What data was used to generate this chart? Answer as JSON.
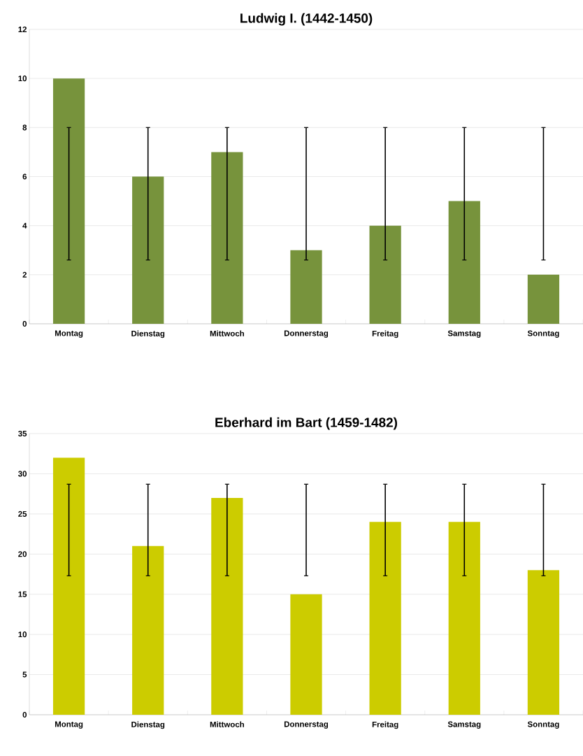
{
  "chart_data": [
    {
      "type": "bar",
      "title": "Ludwig I.  (1442-1450)",
      "categories": [
        "Montag",
        "Dienstag",
        "Mittwoch",
        "Donnerstag",
        "Freitag",
        "Samstag",
        "Sonntag"
      ],
      "values": [
        10,
        6,
        7,
        3,
        4,
        5,
        2
      ],
      "color": "#77933c",
      "errors": [
        [
          2.6,
          8
        ],
        [
          2.6,
          8
        ],
        [
          2.6,
          8
        ],
        [
          2.6,
          8
        ],
        [
          2.6,
          8
        ],
        [
          2.6,
          8
        ],
        [
          2.6,
          8
        ]
      ],
      "ylim": [
        0,
        12
      ],
      "yticks": [
        0,
        2,
        4,
        6,
        8,
        10,
        12
      ],
      "grid": "y"
    },
    {
      "type": "bar",
      "title": "Eberhard im Bart  (1459-1482)",
      "categories": [
        "Montag",
        "Dienstag",
        "Mittwoch",
        "Donnerstag",
        "Freitag",
        "Samstag",
        "Sonntag"
      ],
      "values": [
        32,
        21,
        27,
        15,
        24,
        24,
        18
      ],
      "color": "#cccc00",
      "errors": [
        [
          17.3,
          28.7
        ],
        [
          17.3,
          28.7
        ],
        [
          17.3,
          28.7
        ],
        [
          17.3,
          28.7
        ],
        [
          17.3,
          28.7
        ],
        [
          17.3,
          28.7
        ],
        [
          17.3,
          28.7
        ]
      ],
      "ylim": [
        0,
        35
      ],
      "yticks": [
        0,
        5,
        10,
        15,
        20,
        25,
        30,
        35
      ],
      "grid": "y"
    }
  ]
}
